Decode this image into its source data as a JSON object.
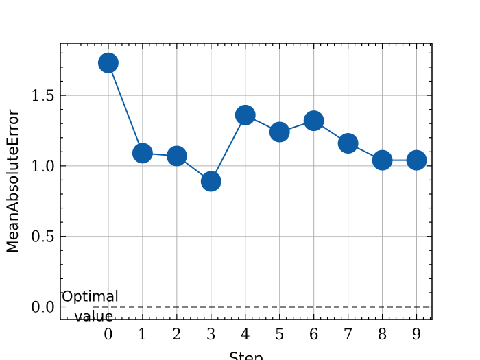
{
  "chart_data": {
    "type": "line",
    "title": "",
    "xlabel": "Step",
    "ylabel": "MeanAbsoluteError",
    "x": [
      0,
      1,
      2,
      3,
      4,
      5,
      6,
      7,
      8,
      9
    ],
    "series": [
      {
        "values": [
          1.73,
          1.09,
          1.07,
          0.89,
          1.36,
          1.24,
          1.32,
          1.16,
          1.04,
          1.04
        ],
        "color": "#0c5da5",
        "marker": "circle"
      }
    ],
    "reference_line": {
      "label": "Optimal value",
      "y": 0.0,
      "style": "dashed",
      "color": "#000000"
    },
    "xlim": [
      -1.4,
      9.45
    ],
    "ylim": [
      -0.09,
      1.87
    ],
    "xticks": [
      0,
      1,
      2,
      3,
      4,
      5,
      6,
      7,
      8,
      9
    ],
    "yticks": [
      0.0,
      0.5,
      1.0,
      1.5
    ],
    "ytick_labels": [
      "0.0",
      "0.5",
      "1.0",
      "1.5"
    ],
    "grid": true
  }
}
